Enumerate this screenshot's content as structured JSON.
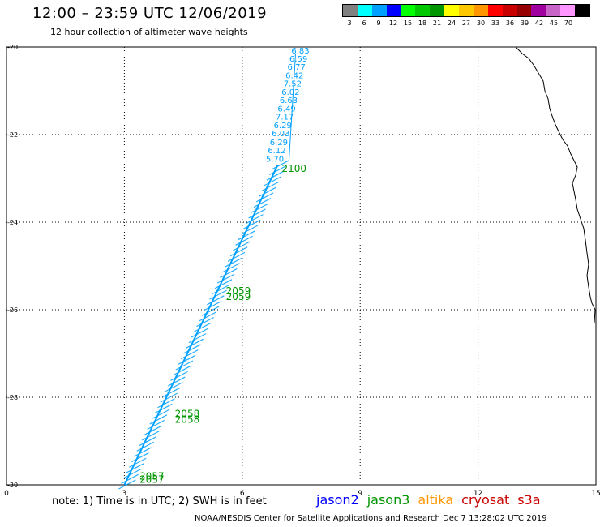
{
  "header": {
    "title": "12:00 – 23:59 UTC 12/06/2019",
    "subtitle": "12 hour collection of altimeter wave heights"
  },
  "legend": {
    "unit": "(ft)",
    "bins": [
      {
        "label": "3",
        "color": "#808080"
      },
      {
        "label": "6",
        "color": "#00ffff"
      },
      {
        "label": "9",
        "color": "#00a0ff"
      },
      {
        "label": "12",
        "color": "#0000ff"
      },
      {
        "label": "15",
        "color": "#00ff00"
      },
      {
        "label": "18",
        "color": "#00c800"
      },
      {
        "label": "21",
        "color": "#009600"
      },
      {
        "label": "24",
        "color": "#ffff00"
      },
      {
        "label": "27",
        "color": "#ffc800"
      },
      {
        "label": "30",
        "color": "#ff9600"
      },
      {
        "label": "33",
        "color": "#ff0000"
      },
      {
        "label": "36",
        "color": "#c80000"
      },
      {
        "label": "39",
        "color": "#960000"
      },
      {
        "label": "42",
        "color": "#a000a0"
      },
      {
        "label": "45",
        "color": "#c864c8"
      },
      {
        "label": "70",
        "color": "#ff96ff"
      },
      {
        "label": "",
        "color": "#000000"
      }
    ]
  },
  "chart_data": {
    "type": "scatter",
    "title": "12:00 – 23:59 UTC 12/06/2019",
    "subtitle": "12 hour collection of altimeter wave heights",
    "x_ticks": [
      "0",
      "3",
      "6",
      "9",
      "12",
      "15"
    ],
    "y_ticks": [
      "-20",
      "-22",
      "-24",
      "-26",
      "-28",
      "-30"
    ],
    "xlim": [
      0,
      15
    ],
    "ylim": [
      -30,
      -20
    ],
    "grid": true,
    "track_color": "#00a0ff",
    "time_label_color": "#009600",
    "track_labels": [
      {
        "x": 7.48,
        "y": -20.15,
        "value": "6.83"
      },
      {
        "x": 7.43,
        "y": -20.33,
        "value": "6.59"
      },
      {
        "x": 7.38,
        "y": -20.52,
        "value": "6.77"
      },
      {
        "x": 7.33,
        "y": -20.71,
        "value": "6.42"
      },
      {
        "x": 7.28,
        "y": -20.9,
        "value": "7.52"
      },
      {
        "x": 7.23,
        "y": -21.09,
        "value": "6.02"
      },
      {
        "x": 7.18,
        "y": -21.28,
        "value": "6.63"
      },
      {
        "x": 7.13,
        "y": -21.47,
        "value": "6.49"
      },
      {
        "x": 7.08,
        "y": -21.66,
        "value": "7.17"
      },
      {
        "x": 7.03,
        "y": -21.85,
        "value": "6.29"
      },
      {
        "x": 6.98,
        "y": -22.04,
        "value": "6.03"
      },
      {
        "x": 6.93,
        "y": -22.24,
        "value": "6.29"
      },
      {
        "x": 6.88,
        "y": -22.43,
        "value": "6.12"
      },
      {
        "x": 6.83,
        "y": -22.62,
        "value": "5.70"
      }
    ],
    "time_labels": [
      {
        "x": 7.32,
        "y": -22.85,
        "value": "2100"
      },
      {
        "x": 5.9,
        "y": -25.65,
        "value": "2059"
      },
      {
        "x": 5.9,
        "y": -25.78,
        "value": "2059"
      },
      {
        "x": 4.6,
        "y": -28.45,
        "value": "2058"
      },
      {
        "x": 4.6,
        "y": -28.58,
        "value": "2058"
      },
      {
        "x": 3.7,
        "y": -29.88,
        "value": "2057"
      },
      {
        "x": 3.7,
        "y": -29.95,
        "value": "2057"
      }
    ],
    "track": {
      "start": [
        6.9,
        -22.7
      ],
      "end": [
        3.0,
        -30.0
      ]
    }
  },
  "footer": {
    "note": "note: 1) Time is in UTC; 2) SWH is in feet",
    "satellites": [
      {
        "name": "jason2",
        "color": "#0000ff"
      },
      {
        "name": "jason3",
        "color": "#009600"
      },
      {
        "name": "altika",
        "color": "#ff9600"
      },
      {
        "name": "cryosat",
        "color": "#c80000"
      },
      {
        "name": "s3a",
        "color": "#c80000"
      }
    ],
    "credit": "NOAA/NESDIS Center for Satellite Applications and Research   Dec  7 13:28:02 UTC 2019"
  }
}
